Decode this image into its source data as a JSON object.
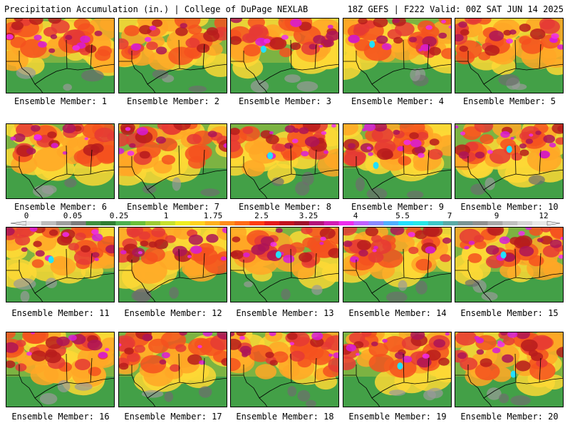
{
  "header": {
    "left": "Precipitation Accumulation (in.) | College of DuPage NEXLAB",
    "right": "18Z GEFS | F222 Valid: 00Z SAT JUN 14 2025"
  },
  "members": [
    {
      "label": "Ensemble Member: 1",
      "intensity": 0.7
    },
    {
      "label": "Ensemble Member: 2",
      "intensity": 0.35
    },
    {
      "label": "Ensemble Member: 3",
      "intensity": 0.75
    },
    {
      "label": "Ensemble Member: 4",
      "intensity": 0.85
    },
    {
      "label": "Ensemble Member: 5",
      "intensity": 0.65
    },
    {
      "label": "Ensemble Member: 6",
      "intensity": 0.7
    },
    {
      "label": "Ensemble Member: 7",
      "intensity": 0.55
    },
    {
      "label": "Ensemble Member: 8",
      "intensity": 0.85
    },
    {
      "label": "Ensemble Member: 9",
      "intensity": 0.9
    },
    {
      "label": "Ensemble Member: 10",
      "intensity": 0.95
    },
    {
      "label": "Ensemble Member: 11",
      "intensity": 0.75
    },
    {
      "label": "Ensemble Member: 12",
      "intensity": 0.7
    },
    {
      "label": "Ensemble Member: 13",
      "intensity": 0.8
    },
    {
      "label": "Ensemble Member: 14",
      "intensity": 0.6
    },
    {
      "label": "Ensemble Member: 15",
      "intensity": 0.9
    },
    {
      "label": "Ensemble Member: 16",
      "intensity": 0.65
    },
    {
      "label": "Ensemble Member: 17",
      "intensity": 0.6
    },
    {
      "label": "Ensemble Member: 18",
      "intensity": 0.7
    },
    {
      "label": "Ensemble Member: 19",
      "intensity": 0.75
    },
    {
      "label": "Ensemble Member: 20",
      "intensity": 0.8
    }
  ],
  "colorbar": {
    "labels": [
      "0",
      "0.05",
      "0.25",
      "1",
      "1.75",
      "2.5",
      "3.25",
      "4",
      "5.5",
      "7",
      "9",
      "12"
    ],
    "colors": [
      "#e6e6e6",
      "#bdbdbd",
      "#9e9e9e",
      "#7d7d7d",
      "#3f8f3f",
      "#2e7d32",
      "#4caf50",
      "#6bbf3a",
      "#9ccc34",
      "#c6e02e",
      "#eeee22",
      "#ffd21f",
      "#ffb01e",
      "#ff8c1a",
      "#ff6a16",
      "#ff3c12",
      "#e41a1c",
      "#c2101f",
      "#a0102c",
      "#b4127a",
      "#d21cb4",
      "#ee2cee",
      "#c060ff",
      "#8a8aff",
      "#4fb0ff",
      "#22e0ff",
      "#26e8e8",
      "#3cc8c8",
      "#5aaaa6",
      "#7a9494",
      "#909090",
      "#a8a8a8",
      "#c0c0c0",
      "#d6d6d6",
      "#e8e8e8"
    ]
  },
  "map_colors": {
    "ramp": [
      "#6e6e6e",
      "#9a9a9a",
      "#2e7d32",
      "#43a047",
      "#7cb342",
      "#c0ca33",
      "#fdd835",
      "#ffa726",
      "#f4511e",
      "#e53935",
      "#b71c1c",
      "#ad1457",
      "#d81bd8",
      "#ee2cee",
      "#22e0ff",
      "#cfd8dc"
    ],
    "border": "#000000"
  }
}
